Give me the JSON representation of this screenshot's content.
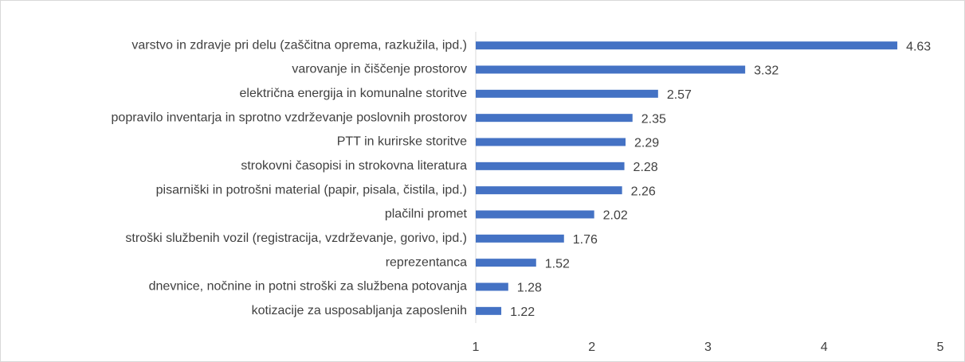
{
  "chart_data": {
    "type": "bar",
    "orientation": "horizontal",
    "categories": [
      "varstvo in zdravje pri delu (zaščitna oprema, razkužila, ipd.)",
      "varovanje in čiščenje prostorov",
      "električna energija in komunalne storitve",
      "popravilo inventarja in sprotno vzdrževanje poslovnih prostorov",
      "PTT in kurirske storitve",
      "strokovni časopisi in strokovna literatura",
      "pisarniški in potrošni material (papir, pisala, čistila, ipd.)",
      "plačilni promet",
      "stroški službenih vozil (registracija, vzdrževanje, gorivo, ipd.)",
      "reprezentanca",
      "dnevnice, nočnine in potni stroški za službena potovanja",
      "kotizacije za usposabljanja zaposlenih"
    ],
    "values": [
      4.63,
      3.32,
      2.57,
      2.35,
      2.29,
      2.28,
      2.26,
      2.02,
      1.76,
      1.52,
      1.28,
      1.22
    ],
    "color": "#4472c4",
    "xlim": [
      1,
      5
    ],
    "xticks": [
      1,
      2,
      3,
      4,
      5
    ],
    "grid": false
  }
}
